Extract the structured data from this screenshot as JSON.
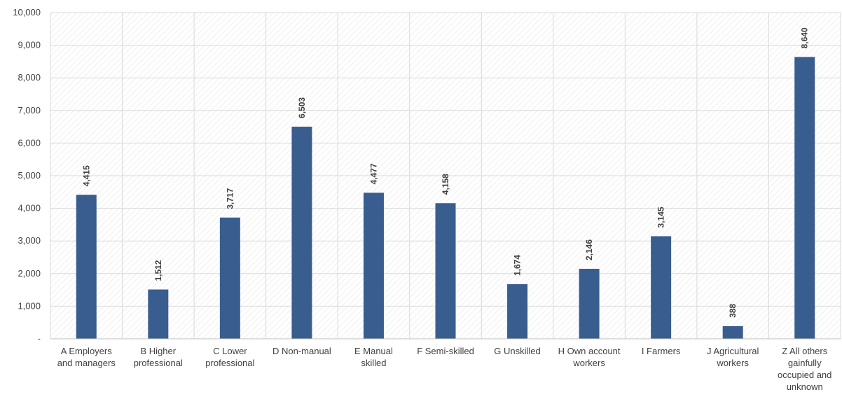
{
  "chart_data": {
    "type": "bar",
    "title": "",
    "xlabel": "",
    "ylabel": "",
    "ylim": [
      0,
      10000
    ],
    "yticks": [
      0,
      1000,
      2000,
      3000,
      4000,
      5000,
      6000,
      7000,
      8000,
      9000,
      10000
    ],
    "ytick_labels": [
      "-",
      "1,000",
      "2,000",
      "3,000",
      "4,000",
      "5,000",
      "6,000",
      "7,000",
      "8,000",
      "9,000",
      "10,000"
    ],
    "categories": [
      [
        "A Employers",
        "and managers"
      ],
      [
        "B Higher",
        "professional"
      ],
      [
        "C Lower",
        "professional"
      ],
      [
        "D Non-manual"
      ],
      [
        "E Manual",
        "skilled"
      ],
      [
        "F Semi-skilled"
      ],
      [
        "G Unskilled"
      ],
      [
        "H Own account",
        "workers"
      ],
      [
        "I Farmers"
      ],
      [
        "J Agricultural",
        "workers"
      ],
      [
        "Z All others",
        "gainfully",
        "occupied and",
        "unknown"
      ]
    ],
    "values": [
      4415,
      1512,
      3717,
      6503,
      4477,
      4158,
      1674,
      2146,
      3145,
      388,
      8640
    ],
    "data_labels": [
      "4,415",
      "1,512",
      "3,717",
      "6,503",
      "4,477",
      "4,158",
      "1,674",
      "2,146",
      "3,145",
      "388",
      "8,640"
    ],
    "bar_color": "#3A5D8F",
    "grid": true,
    "legend": "none"
  }
}
